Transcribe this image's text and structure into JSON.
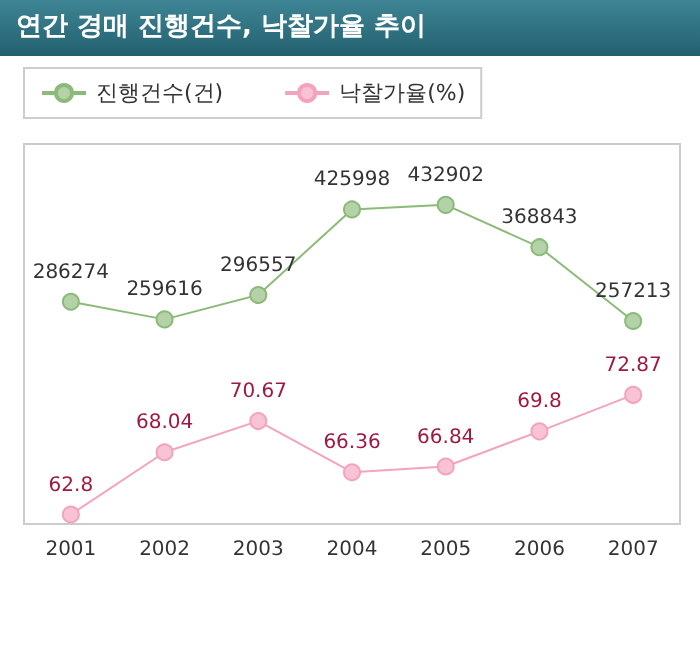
{
  "chart_data": {
    "type": "line",
    "title": "연간 경매 진행건수, 낙찰가율 추이",
    "categories": [
      "2001",
      "2002",
      "2003",
      "2004",
      "2005",
      "2006",
      "2007"
    ],
    "series": [
      {
        "name": "진행건수(건)",
        "color": "#8cba78",
        "values": [
          286274,
          259616,
          296557,
          425998,
          432902,
          368843,
          257213
        ]
      },
      {
        "name": "낙찰가율(%)",
        "color": "#f4a3bf",
        "axis": "y2",
        "values": [
          62.8,
          68.04,
          70.67,
          66.36,
          66.84,
          69.8,
          72.87
        ]
      }
    ],
    "ylim": [
      -50000,
      525000
    ],
    "y2lim": [
      62,
      94
    ],
    "data_labels": true,
    "legend": "top left",
    "marker": "circle",
    "line_style": "solid",
    "grid": false
  }
}
